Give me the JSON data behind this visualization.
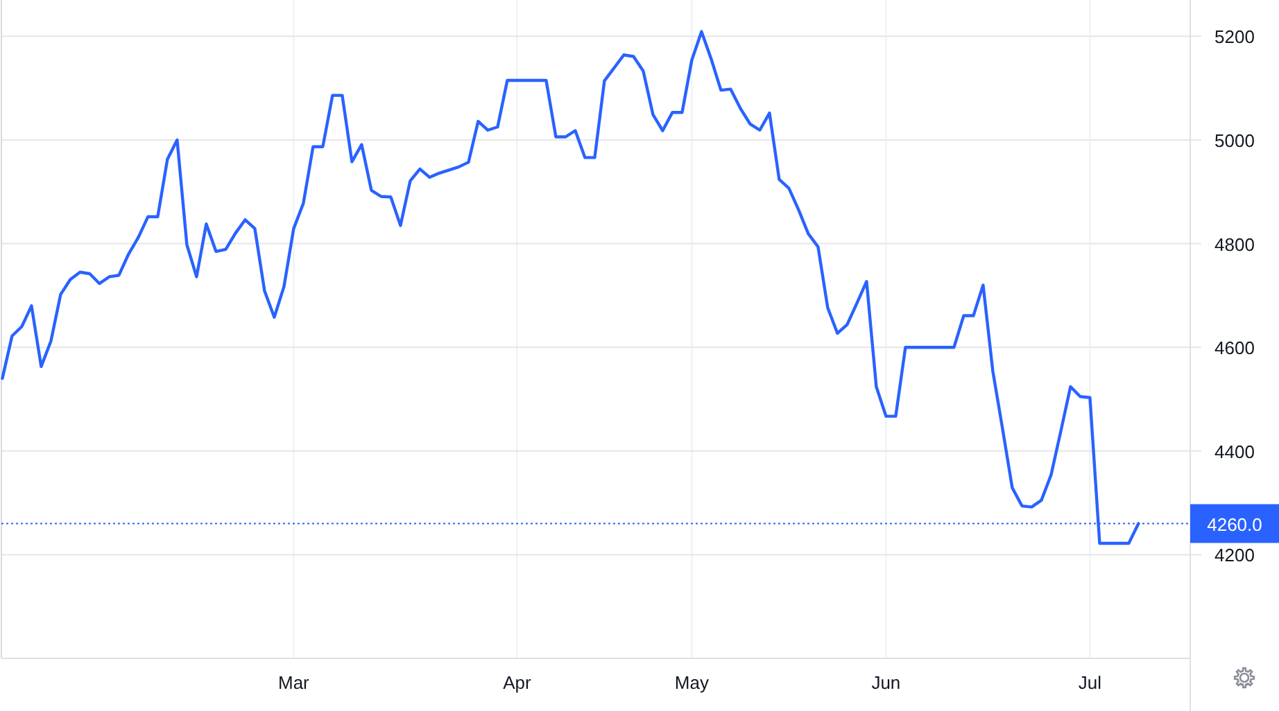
{
  "chart_data": {
    "type": "line",
    "categories": [
      null,
      null,
      null,
      null,
      null,
      null,
      null,
      null,
      null,
      null,
      null,
      null,
      null,
      null,
      null,
      null,
      null,
      null,
      null,
      null,
      null,
      null,
      null,
      null,
      null,
      null,
      null,
      null,
      null,
      null,
      "Mar",
      null,
      null,
      null,
      null,
      null,
      null,
      null,
      null,
      null,
      null,
      null,
      null,
      null,
      null,
      null,
      null,
      null,
      null,
      null,
      null,
      null,
      null,
      "Apr",
      null,
      null,
      null,
      null,
      null,
      null,
      null,
      null,
      null,
      null,
      null,
      null,
      null,
      null,
      null,
      null,
      null,
      "May",
      null,
      null,
      null,
      null,
      null,
      null,
      null,
      null,
      null,
      null,
      null,
      null,
      null,
      null,
      null,
      null,
      null,
      null,
      null,
      "Jun",
      null,
      null,
      null,
      null,
      null,
      null,
      null,
      null,
      null,
      null,
      null,
      null,
      null,
      null,
      null,
      null,
      null,
      null,
      null,
      null,
      "Jul",
      null,
      null,
      null,
      null,
      null
    ],
    "series": [
      {
        "color": "#2962ff",
        "values": [
          4540,
          4622,
          4640,
          4680,
          4563,
          4612,
          4702,
          4731,
          4745,
          4742,
          4723,
          4736,
          4739,
          4780,
          4812,
          4852,
          4852,
          4963,
          5000,
          4798,
          4736,
          4838,
          4785,
          4789,
          4820,
          4846,
          4829,
          4709,
          4658,
          4717,
          4829,
          4878,
          4987,
          4987,
          5086,
          5086,
          4958,
          4991,
          4903,
          4891,
          4890,
          4835,
          4921,
          4944,
          4928,
          4936,
          4942,
          4948,
          4957,
          5036,
          5019,
          5025,
          5115,
          5115,
          5115,
          5115,
          5115,
          5006,
          5006,
          5018,
          4966,
          4966,
          5114,
          5139,
          5164,
          5161,
          5133,
          5049,
          5018,
          5053,
          5053,
          5154,
          5209,
          5156,
          5096,
          5098,
          5061,
          5031,
          5019,
          5052,
          4924,
          4907,
          4865,
          4819,
          4794,
          4676,
          4627,
          4644,
          4685,
          4727,
          4524,
          4467,
          4467,
          4600,
          4600,
          4600,
          4600,
          4600,
          4600,
          4661,
          4661,
          4720,
          4554,
          4443,
          4329,
          4294,
          4292,
          4305,
          4354,
          4438,
          4524,
          4505,
          4503,
          4222,
          4222,
          4222,
          4222,
          4260
        ]
      }
    ],
    "ylim": [
      4000,
      5270
    ],
    "yticks": [
      4200,
      4400,
      4600,
      4800,
      5000,
      5200
    ],
    "ref_lines": [
      {
        "axis": "y",
        "value": 4260,
        "label": "4260.0",
        "color": "#2962ff",
        "line_style": "dotted"
      }
    ],
    "grid": true,
    "marker": "none",
    "line_style": "solid"
  }
}
